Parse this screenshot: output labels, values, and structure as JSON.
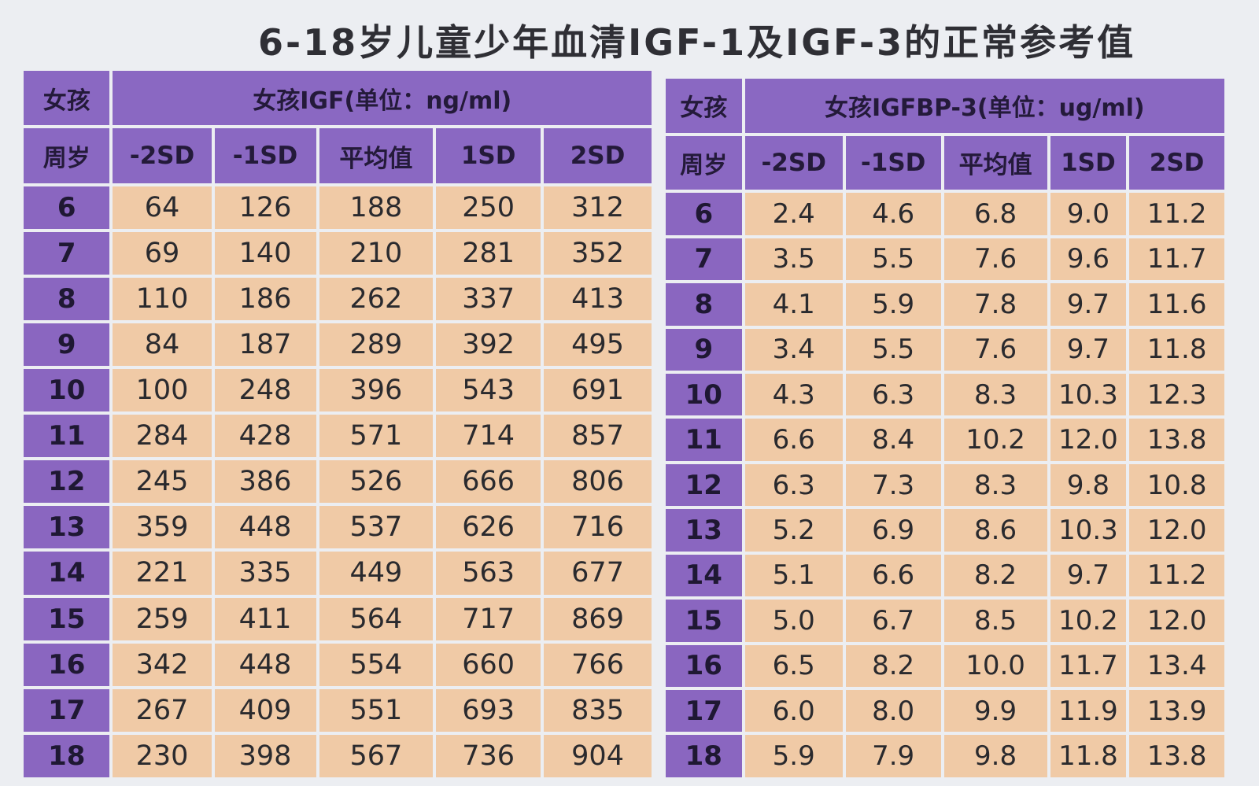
{
  "title": "6-18岁儿童少年血清IGF-1及IGF-3的正常参考值",
  "igf1_table": {
    "corner_top": "女孩",
    "corner_bottom": "周岁",
    "group_header": "女孩IGF(单位：ng/ml)",
    "columns": [
      "-2SD",
      "-1SD",
      "平均值",
      "1SD",
      "2SD"
    ],
    "rows": [
      {
        "age": "6",
        "values": [
          "64",
          "126",
          "188",
          "250",
          "312"
        ]
      },
      {
        "age": "7",
        "values": [
          "69",
          "140",
          "210",
          "281",
          "352"
        ]
      },
      {
        "age": "8",
        "values": [
          "110",
          "186",
          "262",
          "337",
          "413"
        ]
      },
      {
        "age": "9",
        "values": [
          "84",
          "187",
          "289",
          "392",
          "495"
        ]
      },
      {
        "age": "10",
        "values": [
          "100",
          "248",
          "396",
          "543",
          "691"
        ]
      },
      {
        "age": "11",
        "values": [
          "284",
          "428",
          "571",
          "714",
          "857"
        ]
      },
      {
        "age": "12",
        "values": [
          "245",
          "386",
          "526",
          "666",
          "806"
        ]
      },
      {
        "age": "13",
        "values": [
          "359",
          "448",
          "537",
          "626",
          "716"
        ]
      },
      {
        "age": "14",
        "values": [
          "221",
          "335",
          "449",
          "563",
          "677"
        ]
      },
      {
        "age": "15",
        "values": [
          "259",
          "411",
          "564",
          "717",
          "869"
        ]
      },
      {
        "age": "16",
        "values": [
          "342",
          "448",
          "554",
          "660",
          "766"
        ]
      },
      {
        "age": "17",
        "values": [
          "267",
          "409",
          "551",
          "693",
          "835"
        ]
      },
      {
        "age": "18",
        "values": [
          "230",
          "398",
          "567",
          "736",
          "904"
        ]
      }
    ]
  },
  "igfbp3_table": {
    "corner_top": "女孩",
    "corner_bottom": "周岁",
    "group_header": "女孩IGFBP-3(单位：ug/ml)",
    "columns": [
      "-2SD",
      "-1SD",
      "平均值",
      "1SD",
      "2SD"
    ],
    "rows": [
      {
        "age": "6",
        "values": [
          "2.4",
          "4.6",
          "6.8",
          "9.0",
          "11.2"
        ]
      },
      {
        "age": "7",
        "values": [
          "3.5",
          "5.5",
          "7.6",
          "9.6",
          "11.7"
        ]
      },
      {
        "age": "8",
        "values": [
          "4.1",
          "5.9",
          "7.8",
          "9.7",
          "11.6"
        ]
      },
      {
        "age": "9",
        "values": [
          "3.4",
          "5.5",
          "7.6",
          "9.7",
          "11.8"
        ]
      },
      {
        "age": "10",
        "values": [
          "4.3",
          "6.3",
          "8.3",
          "10.3",
          "12.3"
        ]
      },
      {
        "age": "11",
        "values": [
          "6.6",
          "8.4",
          "10.2",
          "12.0",
          "13.8"
        ]
      },
      {
        "age": "12",
        "values": [
          "6.3",
          "7.3",
          "8.3",
          "9.8",
          "10.8"
        ]
      },
      {
        "age": "13",
        "values": [
          "5.2",
          "6.9",
          "8.6",
          "10.3",
          "12.0"
        ]
      },
      {
        "age": "14",
        "values": [
          "5.1",
          "6.6",
          "8.2",
          "9.7",
          "11.2"
        ]
      },
      {
        "age": "15",
        "values": [
          "5.0",
          "6.7",
          "8.5",
          "10.2",
          "12.0"
        ]
      },
      {
        "age": "16",
        "values": [
          "6.5",
          "8.2",
          "10.0",
          "11.7",
          "13.4"
        ]
      },
      {
        "age": "17",
        "values": [
          "6.0",
          "8.0",
          "9.9",
          "11.9",
          "13.9"
        ]
      },
      {
        "age": "18",
        "values": [
          "5.9",
          "7.9",
          "9.8",
          "11.8",
          "13.8"
        ]
      }
    ]
  },
  "colors": {
    "header_purple": "#8a68c2",
    "cell_peach": "#f0caa6",
    "background": "#eceef2"
  }
}
